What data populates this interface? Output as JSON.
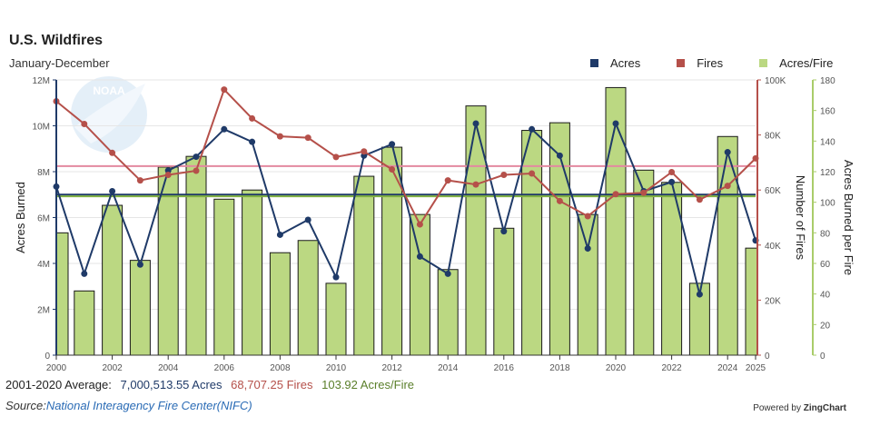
{
  "chart_data": {
    "type": "bar+line",
    "title": "U.S. Wildfires",
    "subtitle": "January-December",
    "x": [
      2000,
      2001,
      2002,
      2003,
      2004,
      2005,
      2006,
      2007,
      2008,
      2009,
      2010,
      2011,
      2012,
      2013,
      2014,
      2015,
      2016,
      2017,
      2018,
      2019,
      2020,
      2021,
      2022,
      2023,
      2024,
      2025
    ],
    "x_tick_labels": [
      "2000",
      "2002",
      "2004",
      "2006",
      "2008",
      "2010",
      "2012",
      "2014",
      "2016",
      "2018",
      "2020",
      "2022",
      "2024",
      "2025"
    ],
    "series": [
      {
        "name": "Acres",
        "axis": "left",
        "color": "#1f3a68",
        "type": "line",
        "values": [
          7350000,
          3550000,
          7150000,
          3950000,
          8050000,
          8650000,
          9850000,
          9300000,
          5250000,
          5900000,
          3400000,
          8700000,
          9200000,
          4300000,
          3550000,
          10100000,
          5400000,
          9850000,
          8700000,
          4650000,
          10100000,
          7150000,
          7550000,
          2650000,
          8850000,
          5000000
        ]
      },
      {
        "name": "Fires",
        "axis": "right1",
        "color": "#b5504a",
        "type": "line",
        "values": [
          92250,
          84000,
          73500,
          63500,
          65500,
          67000,
          96500,
          86000,
          79500,
          79000,
          72000,
          74000,
          67500,
          47500,
          63500,
          62000,
          65500,
          66000,
          56000,
          50500,
          58500,
          59000,
          66500,
          56500,
          61500,
          71500
        ]
      },
      {
        "name": "Acres/Fire",
        "axis": "right2",
        "color": "#bbd882",
        "type": "bar",
        "values": [
          80,
          42,
          98,
          62,
          123,
          130,
          102,
          108,
          67,
          75,
          47,
          117,
          136,
          92,
          56,
          163,
          83,
          147,
          152,
          92,
          175,
          121,
          113,
          47,
          143,
          70
        ]
      }
    ],
    "left_axis": {
      "label": "Acres Burned",
      "min": 0,
      "max": 12000000,
      "ticks": [
        "0",
        "2M",
        "4M",
        "6M",
        "8M",
        "10M",
        "12M"
      ]
    },
    "right_axis_1": {
      "label": "Number of Fires",
      "min": 0,
      "max": 100000,
      "ticks": [
        "0",
        "20K",
        "40K",
        "60K",
        "80K",
        "100K"
      ]
    },
    "right_axis_2": {
      "label": "Acres Burned per Fire",
      "min": 0,
      "max": 180,
      "ticks": [
        "0",
        "20",
        "40",
        "60",
        "80",
        "100",
        "120",
        "140",
        "160",
        "180"
      ]
    },
    "reference_lines": [
      {
        "name": "avg_acres",
        "value": 7000513.55,
        "axis": "left",
        "color": "#1f3a68"
      },
      {
        "name": "avg_fires",
        "value": 68707.25,
        "axis": "right1",
        "color": "#e38aa0"
      },
      {
        "name": "avg_acres_per_fire",
        "value": 103.92,
        "axis": "right2",
        "color": "#7fb040"
      }
    ]
  },
  "legend": {
    "acres": {
      "label": "Acres",
      "color": "#1f3a68"
    },
    "fires": {
      "label": "Fires",
      "color": "#b5504a"
    },
    "acres_per_fire": {
      "label": "Acres/Fire",
      "color": "#bbd882"
    }
  },
  "averages": {
    "prefix": "2001-2020 Average:",
    "acres": "7,000,513.55 Acres",
    "fires": "68,707.25 Fires",
    "ratio": "103.92 Acres/Fire"
  },
  "source": {
    "label": "Source:",
    "link": "National Interagency Fire Center(NIFC)"
  },
  "powered": {
    "prefix": "Powered by ",
    "brand": "ZingChart"
  },
  "watermark": {
    "text": "NOAA"
  }
}
